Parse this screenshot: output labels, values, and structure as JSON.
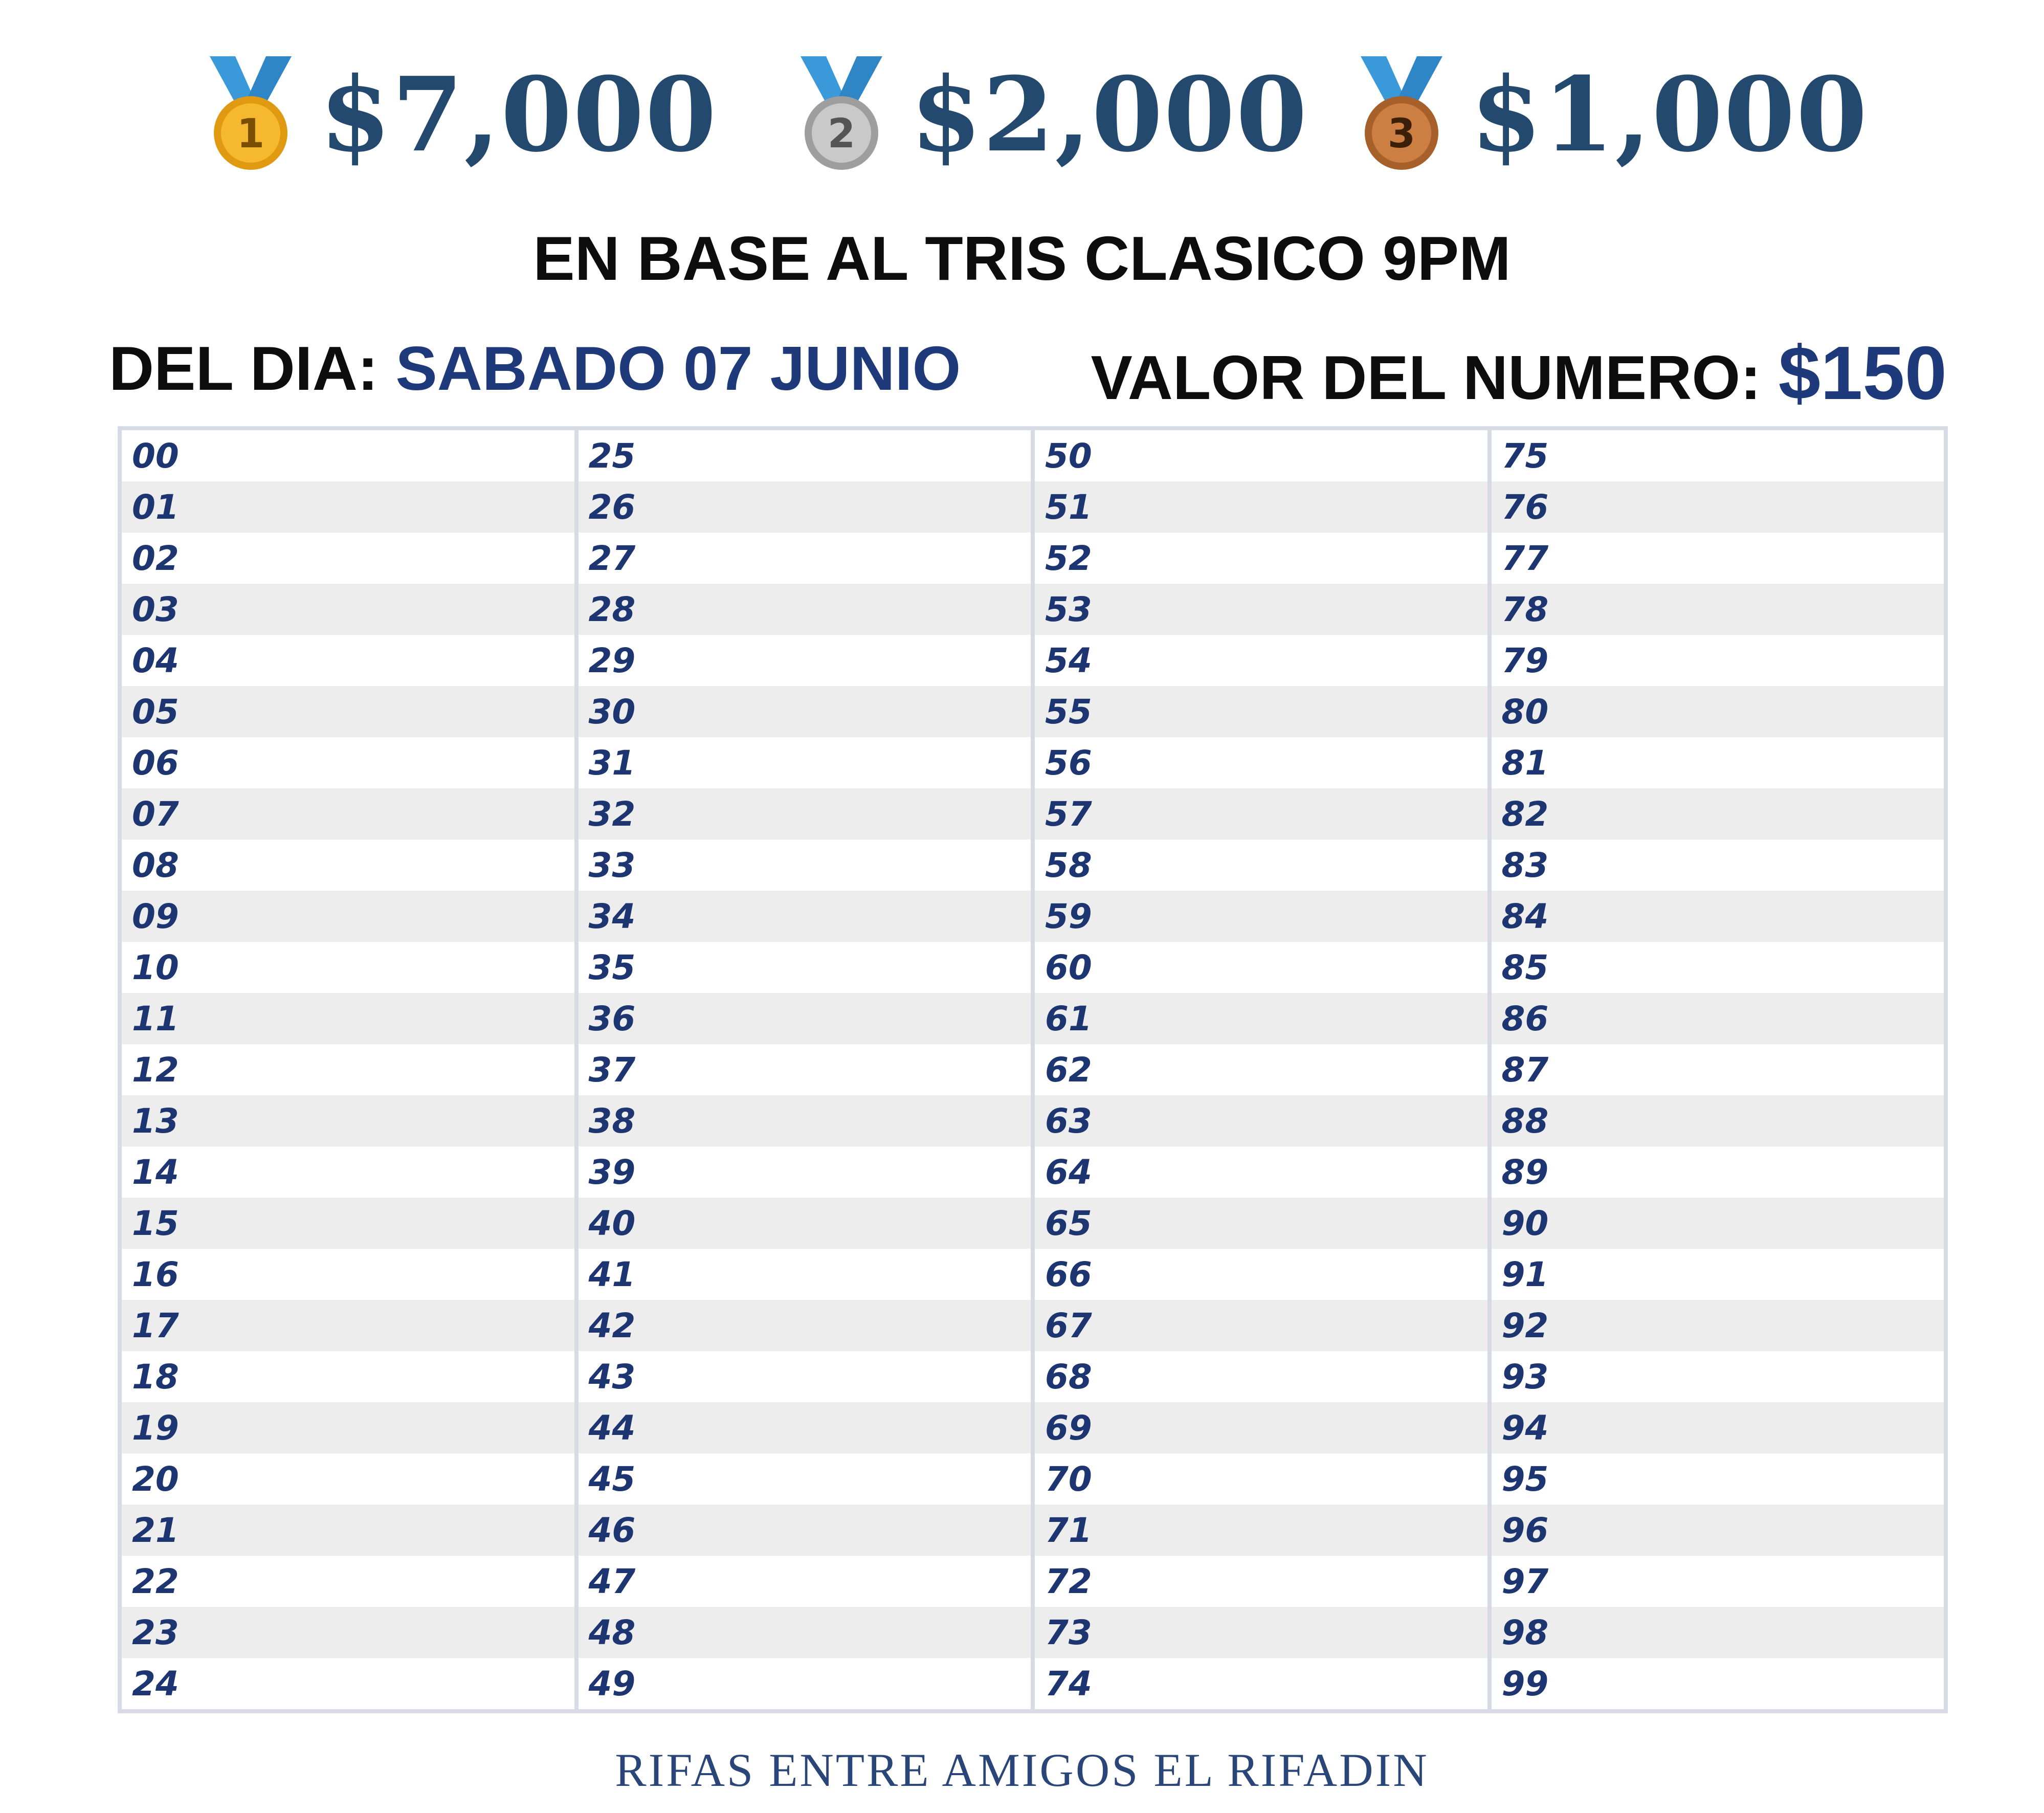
{
  "prizes": [
    {
      "place": "1",
      "amount": "$7,000",
      "medal_color": "#f5b82e",
      "medal_dark": "#e09a12"
    },
    {
      "place": "2",
      "amount": "$2,000",
      "medal_color": "#c9c9c9",
      "medal_dark": "#9e9e9e"
    },
    {
      "place": "3",
      "amount": "$1,000",
      "medal_color": "#cd7f43",
      "medal_dark": "#a8602a"
    }
  ],
  "subtitle": "EN BASE AL TRIS CLASICO 9PM",
  "date": {
    "label": "DEL DIA: ",
    "value": "SABADO 07 JUNIO"
  },
  "price": {
    "label": "VALOR DEL NUMERO: ",
    "value": "$150"
  },
  "numbers": {
    "columns": [
      [
        "00",
        "01",
        "02",
        "03",
        "04",
        "05",
        "06",
        "07",
        "08",
        "09",
        "10",
        "11",
        "12",
        "13",
        "14",
        "15",
        "16",
        "17",
        "18",
        "19",
        "20",
        "21",
        "22",
        "23",
        "24"
      ],
      [
        "25",
        "26",
        "27",
        "28",
        "29",
        "30",
        "31",
        "32",
        "33",
        "34",
        "35",
        "36",
        "37",
        "38",
        "39",
        "40",
        "41",
        "42",
        "43",
        "44",
        "45",
        "46",
        "47",
        "48",
        "49"
      ],
      [
        "50",
        "51",
        "52",
        "53",
        "54",
        "55",
        "56",
        "57",
        "58",
        "59",
        "60",
        "61",
        "62",
        "63",
        "64",
        "65",
        "66",
        "67",
        "68",
        "69",
        "70",
        "71",
        "72",
        "73",
        "74"
      ],
      [
        "75",
        "76",
        "77",
        "78",
        "79",
        "80",
        "81",
        "82",
        "83",
        "84",
        "85",
        "86",
        "87",
        "88",
        "89",
        "90",
        "91",
        "92",
        "93",
        "94",
        "95",
        "96",
        "97",
        "98",
        "99"
      ]
    ]
  },
  "footer": "RIFAS ENTRE AMIGOS EL RIFADIN",
  "colors": {
    "ribbon": "#3a9ad9",
    "amount": "#24496e",
    "accent": "#1f3a7a",
    "row_alt": "#ededed",
    "grid_line": "#d6dbe5"
  }
}
